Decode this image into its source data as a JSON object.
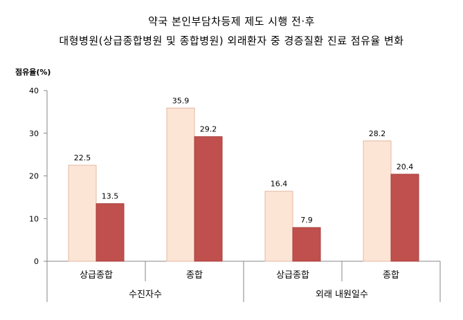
{
  "chart_data": {
    "type": "bar",
    "title_line1": "약국 본인부담차등제 제도 시행 전·후",
    "title_line2": "대형병원(상급종합병원 및 종합병원) 외래환자 중 경증질환 진료 점유율 변화",
    "ylabel": "점유율(%)",
    "ylim": [
      0,
      40
    ],
    "yticks": [
      "0",
      "10",
      "20",
      "30",
      "40"
    ],
    "groups": [
      {
        "label": "수진자수",
        "categories": [
          {
            "label": "상급종합",
            "values": [
              22.5,
              13.5
            ],
            "value_labels": [
              "22.5",
              "13.5"
            ]
          },
          {
            "label": "종합",
            "values": [
              35.9,
              29.2
            ],
            "value_labels": [
              "35.9",
              "29.2"
            ]
          }
        ]
      },
      {
        "label": "외래 내원일수",
        "categories": [
          {
            "label": "상급종합",
            "values": [
              16.4,
              7.9
            ],
            "value_labels": [
              "16.4",
              "7.9"
            ]
          },
          {
            "label": "종합",
            "values": [
              28.2,
              20.4
            ],
            "value_labels": [
              "28.2",
              "20.4"
            ]
          }
        ]
      }
    ],
    "series_colors": [
      "#fde5d6",
      "#c0504d"
    ],
    "series_border_colors": [
      "#e3b8a0",
      "#a7403d"
    ],
    "grid": false,
    "legend": "none"
  }
}
